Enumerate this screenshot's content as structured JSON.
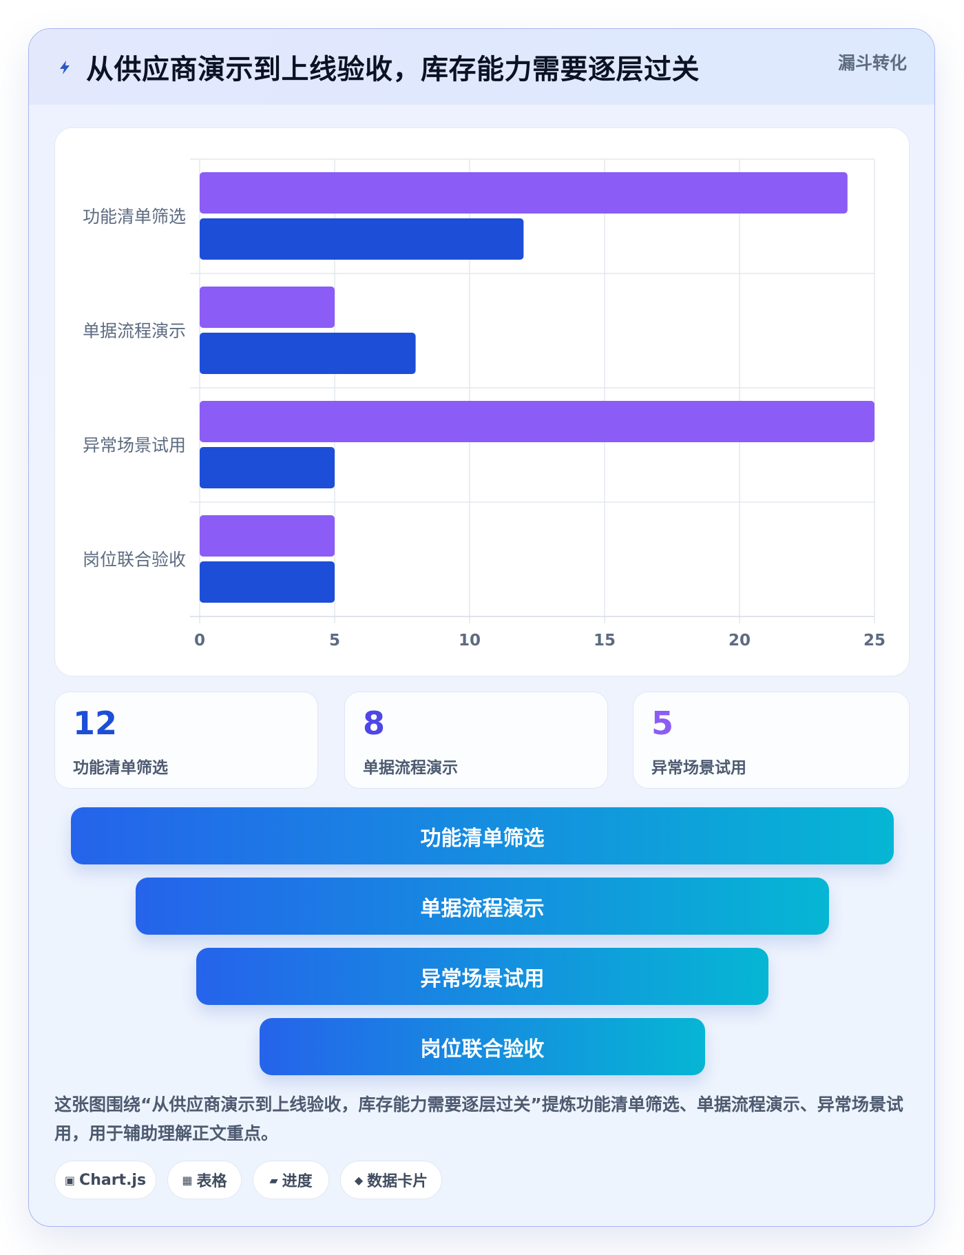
{
  "header": {
    "title": "从供应商演示到上线验收，库存能力需要逐层过关",
    "tag": "漏斗转化",
    "icon": "bolt-icon"
  },
  "chart_data": {
    "type": "bar",
    "orientation": "horizontal",
    "categories": [
      "功能清单筛选",
      "单据流程演示",
      "异常场景试用",
      "岗位联合验收"
    ],
    "series": [
      {
        "values": [
          24,
          5,
          25,
          5
        ],
        "color": "#8b5cf6"
      },
      {
        "values": [
          12,
          8,
          5,
          5
        ],
        "color": "#1d4ed8"
      }
    ],
    "xlim": [
      0,
      25
    ],
    "xticks": [
      0,
      5,
      10,
      15,
      20,
      25
    ],
    "grid": true,
    "legend": "none"
  },
  "kpis": [
    {
      "value": "12",
      "label": "功能清单筛选",
      "color": "#1d4ed8"
    },
    {
      "value": "8",
      "label": "单据流程演示",
      "color": "#4f46e5"
    },
    {
      "value": "5",
      "label": "异常场景试用",
      "color": "#8b5cf6"
    }
  ],
  "funnel": [
    "功能清单筛选",
    "单据流程演示",
    "异常场景试用",
    "岗位联合验收"
  ],
  "description": "这张图围绕“从供应商演示到上线验收，库存能力需要逐层过关”提炼功能清单筛选、单据流程演示、异常场景试用，用于辅助理解正文重点。",
  "chips": [
    {
      "icon": "▣",
      "label": "Chart.js"
    },
    {
      "icon": "▦",
      "label": "表格"
    },
    {
      "icon": "▰",
      "label": "进度"
    },
    {
      "icon": "◆",
      "label": "数据卡片"
    }
  ]
}
